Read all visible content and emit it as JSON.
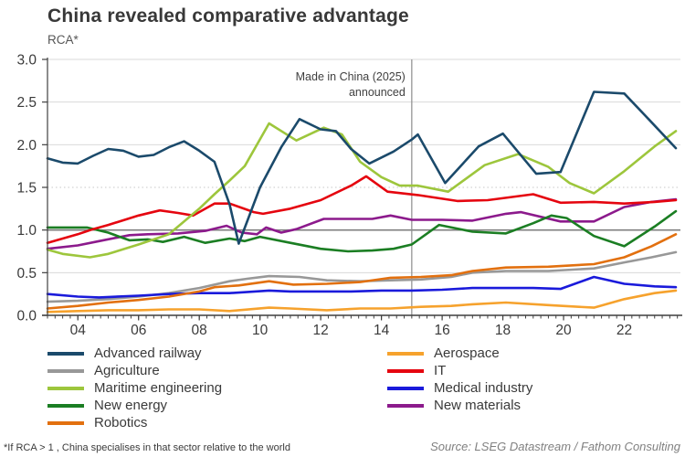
{
  "header": {
    "title": "China revealed comparative advantage",
    "subtitle": "RCA*"
  },
  "annotation": {
    "line1": "Made in China (2025)",
    "line2": "announced",
    "year": 2015
  },
  "axes": {
    "y_ticks": [
      {
        "label": "0.0",
        "value": 0.0
      },
      {
        "label": "0.5",
        "value": 0.5
      },
      {
        "label": "1.0",
        "value": 1.0
      },
      {
        "label": "1.5",
        "value": 1.5
      },
      {
        "label": "2.0",
        "value": 2.0
      },
      {
        "label": "2.5",
        "value": 2.5
      },
      {
        "label": "3.0",
        "value": 3.0
      }
    ],
    "x_ticks": [
      {
        "label": "04",
        "value": 2004
      },
      {
        "label": "06",
        "value": 2006
      },
      {
        "label": "08",
        "value": 2008
      },
      {
        "label": "10",
        "value": 2010
      },
      {
        "label": "12",
        "value": 2012
      },
      {
        "label": "14",
        "value": 2014
      },
      {
        "label": "16",
        "value": 2016
      },
      {
        "label": "18",
        "value": 2018
      },
      {
        "label": "20",
        "value": 2020
      },
      {
        "label": "22",
        "value": 2022
      }
    ]
  },
  "chart_data": {
    "type": "line",
    "title": "China revealed comparative advantage",
    "xlabel": "",
    "ylabel": "RCA*",
    "xlim": [
      2003,
      2023.85
    ],
    "ylim": [
      0,
      3
    ],
    "reference_line": 1.0,
    "grid": "horizontal",
    "legend_position": "bottom-two-columns",
    "series": [
      {
        "name": "Advanced railway",
        "color": "#1B4A6B",
        "points": [
          [
            2003,
            1.84
          ],
          [
            2003.5,
            1.79
          ],
          [
            2004,
            1.78
          ],
          [
            2004.5,
            1.87
          ],
          [
            2005,
            1.95
          ],
          [
            2005.5,
            1.93
          ],
          [
            2006,
            1.86
          ],
          [
            2006.5,
            1.88
          ],
          [
            2007,
            1.97
          ],
          [
            2007.5,
            2.04
          ],
          [
            2008,
            1.93
          ],
          [
            2008.5,
            1.8
          ],
          [
            2009,
            1.3
          ],
          [
            2009.3,
            0.84
          ],
          [
            2010,
            1.5
          ],
          [
            2010.7,
            1.97
          ],
          [
            2011.3,
            2.3
          ],
          [
            2012,
            2.18
          ],
          [
            2012.5,
            2.16
          ],
          [
            2013,
            1.95
          ],
          [
            2013.6,
            1.78
          ],
          [
            2014.4,
            1.92
          ],
          [
            2015,
            2.06
          ],
          [
            2015.2,
            2.12
          ],
          [
            2016.1,
            1.55
          ],
          [
            2017.2,
            1.98
          ],
          [
            2018,
            2.13
          ],
          [
            2019.1,
            1.66
          ],
          [
            2019.9,
            1.68
          ],
          [
            2021,
            2.62
          ],
          [
            2022,
            2.6
          ],
          [
            2022.8,
            2.3
          ],
          [
            2023.7,
            1.96
          ]
        ]
      },
      {
        "name": "Aerospace",
        "color": "#F6A22D",
        "points": [
          [
            2003,
            0.04
          ],
          [
            2004,
            0.05
          ],
          [
            2005,
            0.06
          ],
          [
            2006,
            0.06
          ],
          [
            2007,
            0.07
          ],
          [
            2008,
            0.07
          ],
          [
            2009,
            0.05
          ],
          [
            2010.3,
            0.09
          ],
          [
            2011,
            0.08
          ],
          [
            2012.2,
            0.06
          ],
          [
            2013.3,
            0.08
          ],
          [
            2014.3,
            0.08
          ],
          [
            2015.3,
            0.1
          ],
          [
            2016.3,
            0.11
          ],
          [
            2017,
            0.13
          ],
          [
            2018.1,
            0.15
          ],
          [
            2019.5,
            0.12
          ],
          [
            2021,
            0.09
          ],
          [
            2022,
            0.19
          ],
          [
            2023,
            0.26
          ],
          [
            2023.7,
            0.29
          ]
        ]
      },
      {
        "name": "Agriculture",
        "color": "#989898",
        "points": [
          [
            2003,
            0.16
          ],
          [
            2004,
            0.17
          ],
          [
            2005,
            0.19
          ],
          [
            2006,
            0.22
          ],
          [
            2007,
            0.26
          ],
          [
            2008,
            0.32
          ],
          [
            2009,
            0.4
          ],
          [
            2009.6,
            0.43
          ],
          [
            2010.3,
            0.46
          ],
          [
            2011.3,
            0.45
          ],
          [
            2012.2,
            0.41
          ],
          [
            2013.3,
            0.4
          ],
          [
            2014.3,
            0.41
          ],
          [
            2015.3,
            0.42
          ],
          [
            2016.3,
            0.45
          ],
          [
            2017,
            0.5
          ],
          [
            2018.1,
            0.52
          ],
          [
            2019.5,
            0.52
          ],
          [
            2021,
            0.55
          ],
          [
            2022,
            0.62
          ],
          [
            2022.9,
            0.68
          ],
          [
            2023.7,
            0.74
          ]
        ]
      },
      {
        "name": "IT",
        "color": "#E5050F",
        "points": [
          [
            2003,
            0.85
          ],
          [
            2004,
            0.95
          ],
          [
            2004.5,
            1.01
          ],
          [
            2005,
            1.06
          ],
          [
            2006,
            1.17
          ],
          [
            2006.7,
            1.23
          ],
          [
            2007.3,
            1.2
          ],
          [
            2007.8,
            1.17
          ],
          [
            2008.5,
            1.31
          ],
          [
            2009,
            1.31
          ],
          [
            2009.8,
            1.21
          ],
          [
            2010.1,
            1.19
          ],
          [
            2011,
            1.25
          ],
          [
            2012,
            1.35
          ],
          [
            2013,
            1.52
          ],
          [
            2013.5,
            1.63
          ],
          [
            2014.2,
            1.45
          ],
          [
            2015.2,
            1.41
          ],
          [
            2016.5,
            1.34
          ],
          [
            2017.5,
            1.35
          ],
          [
            2019,
            1.42
          ],
          [
            2019.9,
            1.32
          ],
          [
            2021,
            1.33
          ],
          [
            2022,
            1.31
          ],
          [
            2023,
            1.33
          ],
          [
            2023.7,
            1.35
          ]
        ]
      },
      {
        "name": "Maritime engineering",
        "color": "#9DC63C",
        "points": [
          [
            2003,
            0.77
          ],
          [
            2003.5,
            0.72
          ],
          [
            2004.4,
            0.68
          ],
          [
            2005,
            0.72
          ],
          [
            2006,
            0.83
          ],
          [
            2007,
            0.95
          ],
          [
            2007.5,
            1.1
          ],
          [
            2008,
            1.25
          ],
          [
            2008.5,
            1.42
          ],
          [
            2009,
            1.58
          ],
          [
            2009.5,
            1.75
          ],
          [
            2010.3,
            2.25
          ],
          [
            2011.2,
            2.05
          ],
          [
            2012.1,
            2.2
          ],
          [
            2012.7,
            2.12
          ],
          [
            2013.3,
            1.8
          ],
          [
            2014,
            1.62
          ],
          [
            2014.6,
            1.52
          ],
          [
            2015.2,
            1.52
          ],
          [
            2016.2,
            1.45
          ],
          [
            2017.4,
            1.76
          ],
          [
            2018.5,
            1.89
          ],
          [
            2019.5,
            1.74
          ],
          [
            2020.2,
            1.55
          ],
          [
            2021,
            1.43
          ],
          [
            2022,
            1.69
          ],
          [
            2023,
            1.98
          ],
          [
            2023.7,
            2.16
          ]
        ]
      },
      {
        "name": "Medical industry",
        "color": "#1A1ADB",
        "points": [
          [
            2003,
            0.25
          ],
          [
            2004,
            0.22
          ],
          [
            2004.7,
            0.21
          ],
          [
            2006,
            0.23
          ],
          [
            2007,
            0.25
          ],
          [
            2008,
            0.26
          ],
          [
            2009,
            0.26
          ],
          [
            2010.3,
            0.29
          ],
          [
            2011,
            0.28
          ],
          [
            2012,
            0.28
          ],
          [
            2013,
            0.28
          ],
          [
            2014,
            0.29
          ],
          [
            2015,
            0.29
          ],
          [
            2016,
            0.3
          ],
          [
            2017,
            0.32
          ],
          [
            2018,
            0.32
          ],
          [
            2019,
            0.32
          ],
          [
            2019.9,
            0.31
          ],
          [
            2021,
            0.45
          ],
          [
            2022,
            0.37
          ],
          [
            2023,
            0.34
          ],
          [
            2023.7,
            0.33
          ]
        ]
      },
      {
        "name": "New energy",
        "color": "#1B7E23",
        "points": [
          [
            2003,
            1.03
          ],
          [
            2004.3,
            1.03
          ],
          [
            2005,
            0.97
          ],
          [
            2005.7,
            0.88
          ],
          [
            2006.3,
            0.89
          ],
          [
            2006.8,
            0.86
          ],
          [
            2007.5,
            0.92
          ],
          [
            2008.2,
            0.85
          ],
          [
            2009,
            0.9
          ],
          [
            2009.5,
            0.87
          ],
          [
            2010,
            0.92
          ],
          [
            2011,
            0.85
          ],
          [
            2012,
            0.78
          ],
          [
            2012.9,
            0.75
          ],
          [
            2013.7,
            0.76
          ],
          [
            2014.4,
            0.78
          ],
          [
            2015,
            0.83
          ],
          [
            2015.9,
            1.06
          ],
          [
            2017,
            0.98
          ],
          [
            2018.1,
            0.96
          ],
          [
            2019,
            1.08
          ],
          [
            2019.6,
            1.17
          ],
          [
            2020.1,
            1.14
          ],
          [
            2021,
            0.93
          ],
          [
            2022,
            0.81
          ],
          [
            2023,
            1.04
          ],
          [
            2023.7,
            1.22
          ]
        ]
      },
      {
        "name": "New materials",
        "color": "#8C1A8C",
        "points": [
          [
            2003,
            0.78
          ],
          [
            2004,
            0.82
          ],
          [
            2004.7,
            0.87
          ],
          [
            2005.7,
            0.94
          ],
          [
            2006.3,
            0.95
          ],
          [
            2007.3,
            0.96
          ],
          [
            2008.2,
            0.99
          ],
          [
            2008.9,
            1.05
          ],
          [
            2009.4,
            0.97
          ],
          [
            2009.9,
            0.95
          ],
          [
            2010.2,
            1.03
          ],
          [
            2010.7,
            0.97
          ],
          [
            2011.2,
            1.01
          ],
          [
            2012.1,
            1.13
          ],
          [
            2013,
            1.13
          ],
          [
            2013.7,
            1.13
          ],
          [
            2014.3,
            1.17
          ],
          [
            2015,
            1.12
          ],
          [
            2016,
            1.12
          ],
          [
            2017,
            1.11
          ],
          [
            2018.1,
            1.19
          ],
          [
            2018.6,
            1.21
          ],
          [
            2019.9,
            1.1
          ],
          [
            2021,
            1.1
          ],
          [
            2022,
            1.27
          ],
          [
            2022.9,
            1.33
          ],
          [
            2023.7,
            1.36
          ]
        ]
      },
      {
        "name": "Robotics",
        "color": "#E2700F",
        "points": [
          [
            2003,
            0.08
          ],
          [
            2004,
            0.11
          ],
          [
            2005,
            0.15
          ],
          [
            2006,
            0.18
          ],
          [
            2007,
            0.22
          ],
          [
            2008,
            0.28
          ],
          [
            2008.5,
            0.33
          ],
          [
            2009.3,
            0.35
          ],
          [
            2010.3,
            0.4
          ],
          [
            2011.1,
            0.36
          ],
          [
            2012.2,
            0.37
          ],
          [
            2013.3,
            0.39
          ],
          [
            2014.3,
            0.44
          ],
          [
            2015.3,
            0.45
          ],
          [
            2016.3,
            0.47
          ],
          [
            2017,
            0.52
          ],
          [
            2018.1,
            0.56
          ],
          [
            2019.5,
            0.57
          ],
          [
            2021,
            0.6
          ],
          [
            2022,
            0.68
          ],
          [
            2022.9,
            0.81
          ],
          [
            2023.7,
            0.95
          ]
        ]
      }
    ]
  },
  "legend": {
    "columns": [
      [
        "Advanced railway",
        "Agriculture",
        "Maritime engineering",
        "New energy",
        "Robotics"
      ],
      [
        "Aerospace",
        "IT",
        "Medical industry",
        "New materials"
      ]
    ]
  },
  "footer": {
    "footnote": "*If RCA > 1 , China specialises in that sector relative to the world",
    "source": "Source: LSEG Datastream / Fathom Consulting"
  }
}
